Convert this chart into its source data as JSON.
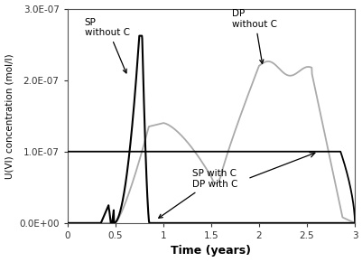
{
  "xlabel": "Time (years)",
  "ylabel": "U(VI) concentration (mol/l)",
  "xlim": [
    0,
    3
  ],
  "ylim": [
    0,
    3e-07
  ],
  "yticks": [
    0.0,
    1e-07,
    2e-07,
    3e-07
  ],
  "ytick_labels": [
    "0.0E+00",
    "1.0E-07",
    "2.0E-07",
    "3.0E-07"
  ],
  "xticks": [
    0,
    0.5,
    1,
    1.5,
    2,
    2.5,
    3
  ],
  "xtick_labels": [
    "0",
    "0.5",
    "1",
    "1.5",
    "2",
    "2.5",
    "3"
  ],
  "sp_without_c_color": "#000000",
  "dp_without_c_color": "#aaaaaa",
  "with_c_color": "#000000",
  "annotation_sp_without_c": "SP\nwithout C",
  "annotation_dp_without_c": "DP\nwithout C",
  "annotation_sp_dp_with_c": "SP with C\nDP with C",
  "figsize": [
    4.02,
    2.9
  ],
  "dpi": 100
}
